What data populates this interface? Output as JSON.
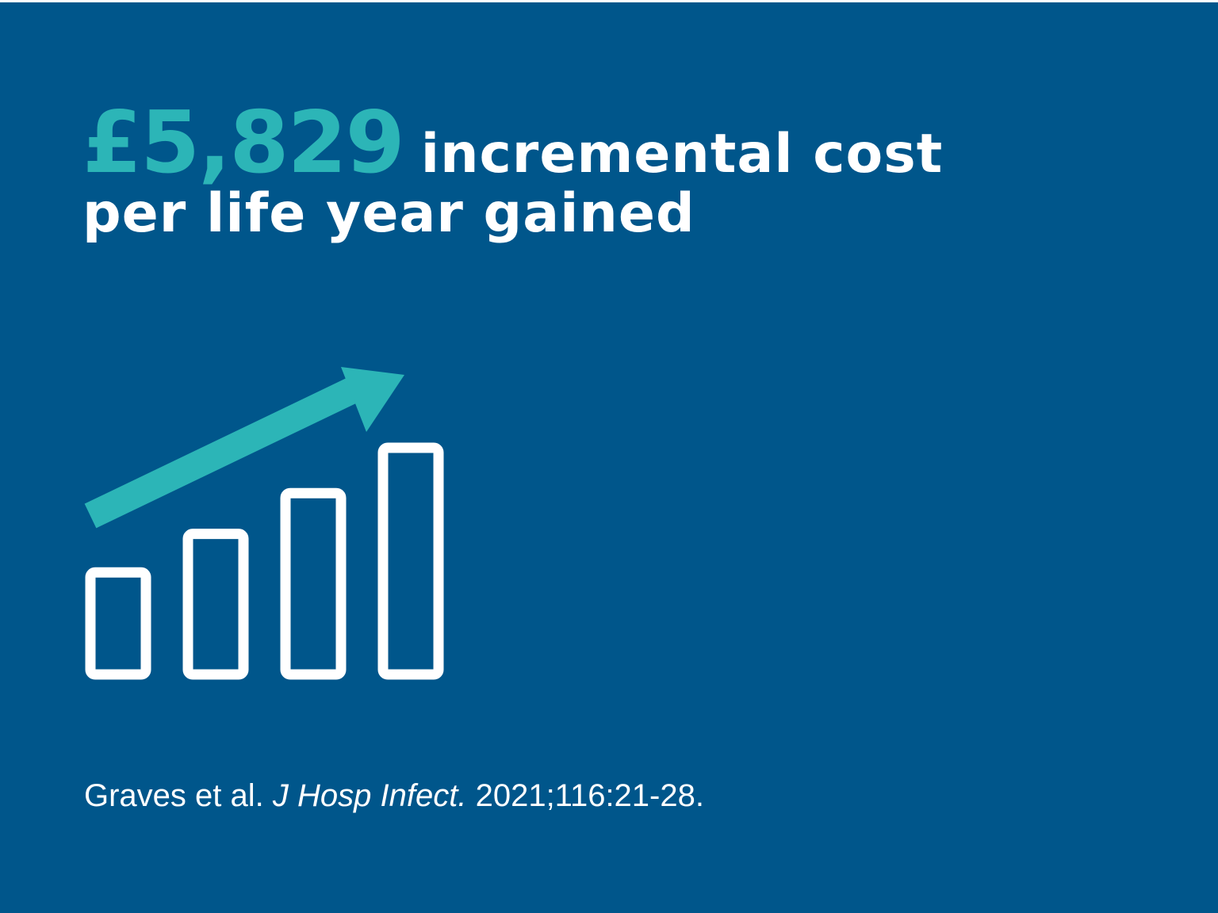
{
  "headline": {
    "value": "£5,829",
    "line1_text": "incremental cost",
    "line2_text": "per life year gained"
  },
  "icon": {
    "name": "rising-bar-chart-icon",
    "bar_levels": [
      0.45,
      0.62,
      0.8,
      1.0
    ],
    "bar_color": "#ffffff",
    "arrow_color": "#2cb5b7"
  },
  "citation": {
    "authors": "Graves et al.",
    "journal": "J Hosp Infect.",
    "details": "2021;116:21-28."
  },
  "colors": {
    "background": "#00568b",
    "accent": "#2cb5b7",
    "text": "#ffffff"
  }
}
